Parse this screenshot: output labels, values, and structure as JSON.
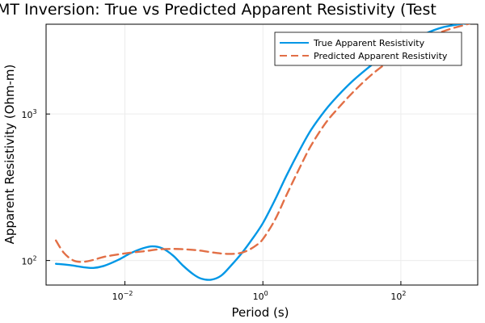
{
  "chart_data": {
    "type": "line",
    "title": "MT Inversion: True vs Predicted Apparent Resistivity (Test",
    "xlabel": "Period (s)",
    "ylabel": "Apparent Resistivity (Ohm-m)",
    "x_scale": "log",
    "y_scale": "log",
    "xlim": [
      0.00072,
      1300
    ],
    "ylim": [
      68,
      4100
    ],
    "x_ticks": [
      {
        "value": 0.01,
        "base": "10",
        "exp": "−2"
      },
      {
        "value": 1,
        "base": "10",
        "exp": "0"
      },
      {
        "value": 100,
        "base": "10",
        "exp": "2"
      }
    ],
    "y_ticks": [
      {
        "value": 100,
        "base": "10",
        "exp": "2"
      },
      {
        "value": 1000,
        "base": "10",
        "exp": "3"
      }
    ],
    "grid": true,
    "legend_position": "top-right",
    "series": [
      {
        "name": "True Apparent Resistivity",
        "color": "#0097e6",
        "dash": "solid",
        "x": [
          0.001,
          0.0016,
          0.0025,
          0.0035,
          0.005,
          0.008,
          0.012,
          0.018,
          0.025,
          0.035,
          0.05,
          0.07,
          0.1,
          0.13,
          0.18,
          0.25,
          0.35,
          0.5,
          0.7,
          1.0,
          1.5,
          2.2,
          3.5,
          5,
          8,
          12,
          20,
          35,
          60,
          100,
          200,
          400,
          1000
        ],
        "y": [
          95,
          93,
          90,
          89,
          92,
          101,
          112,
          121,
          125,
          121,
          108,
          92,
          80,
          75,
          74,
          79,
          93,
          113,
          140,
          180,
          260,
          380,
          580,
          780,
          1060,
          1320,
          1680,
          2100,
          2550,
          2950,
          3450,
          3900,
          4200
        ]
      },
      {
        "name": "Predicted Apparent Resistivity",
        "color": "#e26f46",
        "dash": "dashed",
        "x": [
          0.001,
          0.0013,
          0.0018,
          0.0025,
          0.0035,
          0.005,
          0.008,
          0.012,
          0.02,
          0.03,
          0.05,
          0.08,
          0.12,
          0.2,
          0.3,
          0.45,
          0.6,
          0.8,
          1.0,
          1.5,
          2.2,
          3.5,
          5,
          8,
          12,
          20,
          35,
          60,
          100,
          200,
          400,
          1000
        ],
        "y": [
          137,
          113,
          100,
          98,
          101,
          106,
          110,
          113,
          116,
          119,
          120,
          119,
          117,
          113,
          111,
          112,
          117,
          127,
          140,
          190,
          280,
          440,
          610,
          860,
          1080,
          1400,
          1800,
          2200,
          2550,
          3100,
          3650,
          4150
        ]
      }
    ]
  }
}
